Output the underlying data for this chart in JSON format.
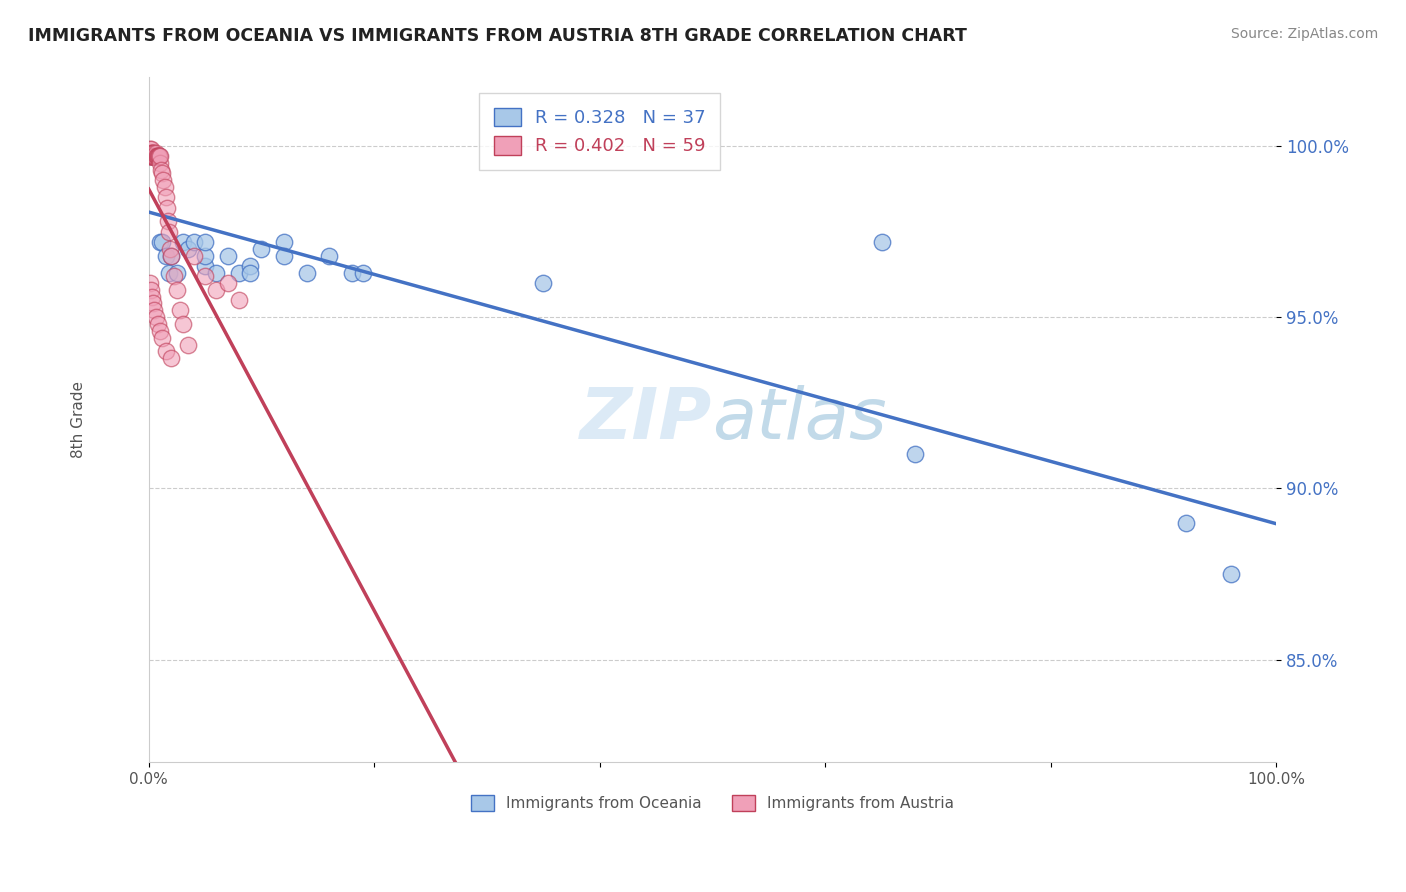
{
  "title": "IMMIGRANTS FROM OCEANIA VS IMMIGRANTS FROM AUSTRIA 8TH GRADE CORRELATION CHART",
  "source": "Source: ZipAtlas.com",
  "ylabel": "8th Grade",
  "R_blue": 0.328,
  "N_blue": 37,
  "R_pink": 0.402,
  "N_pink": 59,
  "blue_color": "#a8c8e8",
  "pink_color": "#f0a0b8",
  "line_blue": "#4472c4",
  "line_pink": "#c0405a",
  "legend_label_blue": "Immigrants from Oceania",
  "legend_label_pink": "Immigrants from Austria",
  "watermark_color": "#d0e8f5",
  "xlim": [
    0.0,
    1.0
  ],
  "ylim": [
    0.82,
    1.02
  ],
  "yticks": [
    0.85,
    0.9,
    0.95,
    1.0
  ],
  "ytick_labels": [
    "85.0%",
    "90.0%",
    "95.0%",
    "100.0%"
  ],
  "blue_x": [
    0.002,
    0.003,
    0.004,
    0.005,
    0.006,
    0.007,
    0.008,
    0.009,
    0.01,
    0.012,
    0.015,
    0.018,
    0.02,
    0.025,
    0.03,
    0.035,
    0.04,
    0.05,
    0.06,
    0.07,
    0.08,
    0.09,
    0.1,
    0.12,
    0.14,
    0.16,
    0.18,
    0.05,
    0.09,
    0.12,
    0.19,
    0.05,
    0.35,
    0.65,
    0.68,
    0.92,
    0.96
  ],
  "blue_y": [
    0.997,
    0.997,
    0.998,
    0.997,
    0.997,
    0.997,
    0.997,
    0.997,
    0.972,
    0.972,
    0.968,
    0.963,
    0.968,
    0.963,
    0.972,
    0.97,
    0.972,
    0.965,
    0.963,
    0.968,
    0.963,
    0.965,
    0.97,
    0.972,
    0.963,
    0.968,
    0.963,
    0.968,
    0.963,
    0.968,
    0.963,
    0.972,
    0.96,
    0.972,
    0.91,
    0.89,
    0.875
  ],
  "pink_x": [
    0.001,
    0.001,
    0.001,
    0.001,
    0.002,
    0.002,
    0.002,
    0.002,
    0.003,
    0.003,
    0.003,
    0.003,
    0.004,
    0.004,
    0.004,
    0.005,
    0.005,
    0.005,
    0.006,
    0.006,
    0.007,
    0.007,
    0.008,
    0.008,
    0.009,
    0.009,
    0.01,
    0.01,
    0.011,
    0.012,
    0.013,
    0.014,
    0.015,
    0.016,
    0.017,
    0.018,
    0.019,
    0.02,
    0.022,
    0.025,
    0.028,
    0.03,
    0.035,
    0.04,
    0.05,
    0.06,
    0.07,
    0.08,
    0.001,
    0.002,
    0.003,
    0.004,
    0.005,
    0.006,
    0.008,
    0.01,
    0.012,
    0.015,
    0.02
  ],
  "pink_y": [
    0.997,
    0.997,
    0.998,
    0.999,
    0.997,
    0.998,
    0.997,
    0.999,
    0.997,
    0.998,
    0.997,
    0.998,
    0.997,
    0.997,
    0.998,
    0.997,
    0.998,
    0.997,
    0.997,
    0.998,
    0.997,
    0.997,
    0.997,
    0.997,
    0.997,
    0.997,
    0.995,
    0.997,
    0.993,
    0.992,
    0.99,
    0.988,
    0.985,
    0.982,
    0.978,
    0.975,
    0.97,
    0.968,
    0.962,
    0.958,
    0.952,
    0.948,
    0.942,
    0.968,
    0.962,
    0.958,
    0.96,
    0.955,
    0.96,
    0.958,
    0.956,
    0.954,
    0.952,
    0.95,
    0.948,
    0.946,
    0.944,
    0.94,
    0.938
  ]
}
